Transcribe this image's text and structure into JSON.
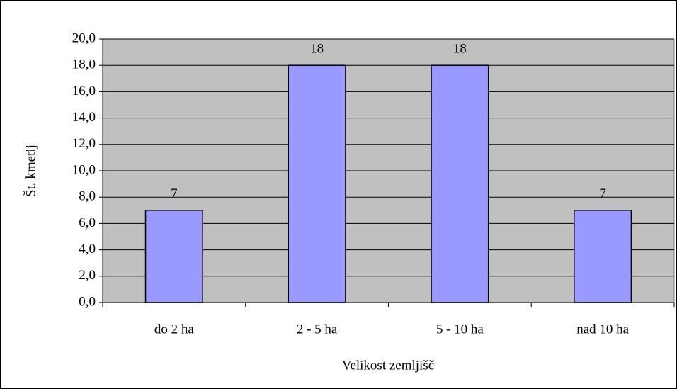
{
  "chart_data": {
    "type": "bar",
    "categories": [
      "do 2 ha",
      "2 - 5 ha",
      "5 - 10 ha",
      "nad 10 ha"
    ],
    "values": [
      7,
      18,
      18,
      7
    ],
    "color": "#9999ff",
    "xlabel": "Velikost zemljišč",
    "ylabel": "Št. kmetij",
    "ylim": [
      0,
      20
    ],
    "yticks": [
      {
        "value": 0,
        "label": "0,0"
      },
      {
        "value": 2,
        "label": "2,0"
      },
      {
        "value": 4,
        "label": "4,0"
      },
      {
        "value": 6,
        "label": "6,0"
      },
      {
        "value": 8,
        "label": "8,0"
      },
      {
        "value": 10,
        "label": "10,0"
      },
      {
        "value": 12,
        "label": "12,0"
      },
      {
        "value": 14,
        "label": "14,0"
      },
      {
        "value": 16,
        "label": "16,0"
      },
      {
        "value": 18,
        "label": "18,0"
      },
      {
        "value": 20,
        "label": "20,0"
      }
    ],
    "grid": true
  }
}
